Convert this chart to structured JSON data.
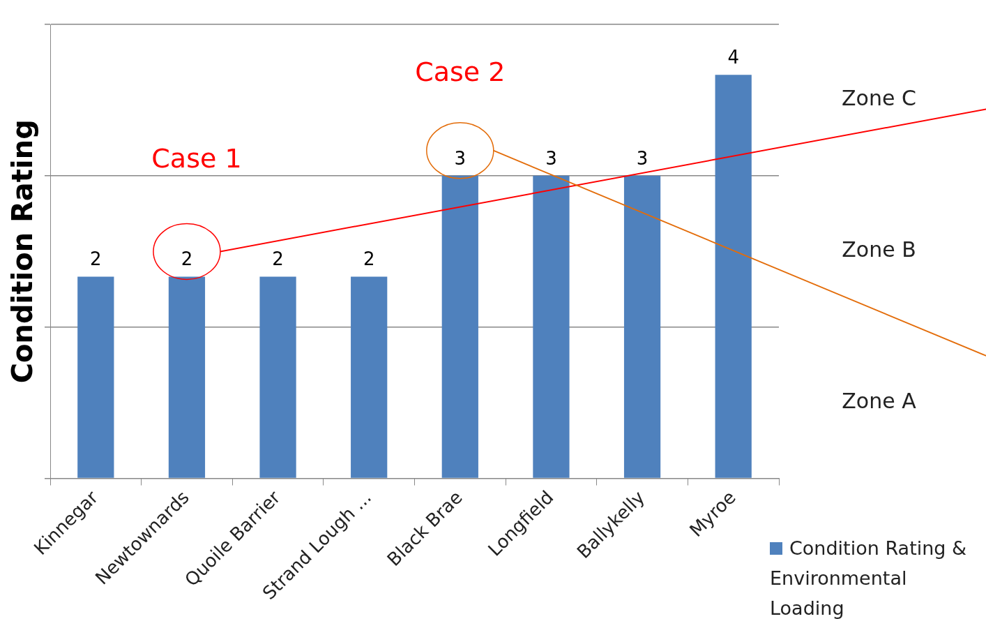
{
  "chart_data": {
    "type": "bar",
    "ylabel": "Condition Rating",
    "categories": [
      "Kinnegar",
      "Newtownards",
      "Quoile Barrier",
      "Strand Lough ...",
      "Black Brae",
      "Longfield",
      "Ballykelly",
      "Myroe"
    ],
    "series": [
      {
        "name": "Condition Rating & Environmental Loading",
        "color": "#4f81bd",
        "values": [
          2,
          2,
          2,
          2,
          3,
          3,
          3,
          4
        ]
      }
    ],
    "ylim": [
      0,
      4.5
    ],
    "yticks": [
      {
        "value": 0,
        "label": null
      },
      {
        "value": 1.5,
        "label": null
      },
      {
        "value": 3,
        "label": null
      },
      {
        "value": 4.5,
        "label": null
      }
    ],
    "tick_labels": "x",
    "grid": "y",
    "legend": "bottom right",
    "data_labels": true,
    "annotations": [
      "Zone A",
      "Zone B",
      "Zone C",
      "Case 1",
      "Case 2"
    ]
  }
}
